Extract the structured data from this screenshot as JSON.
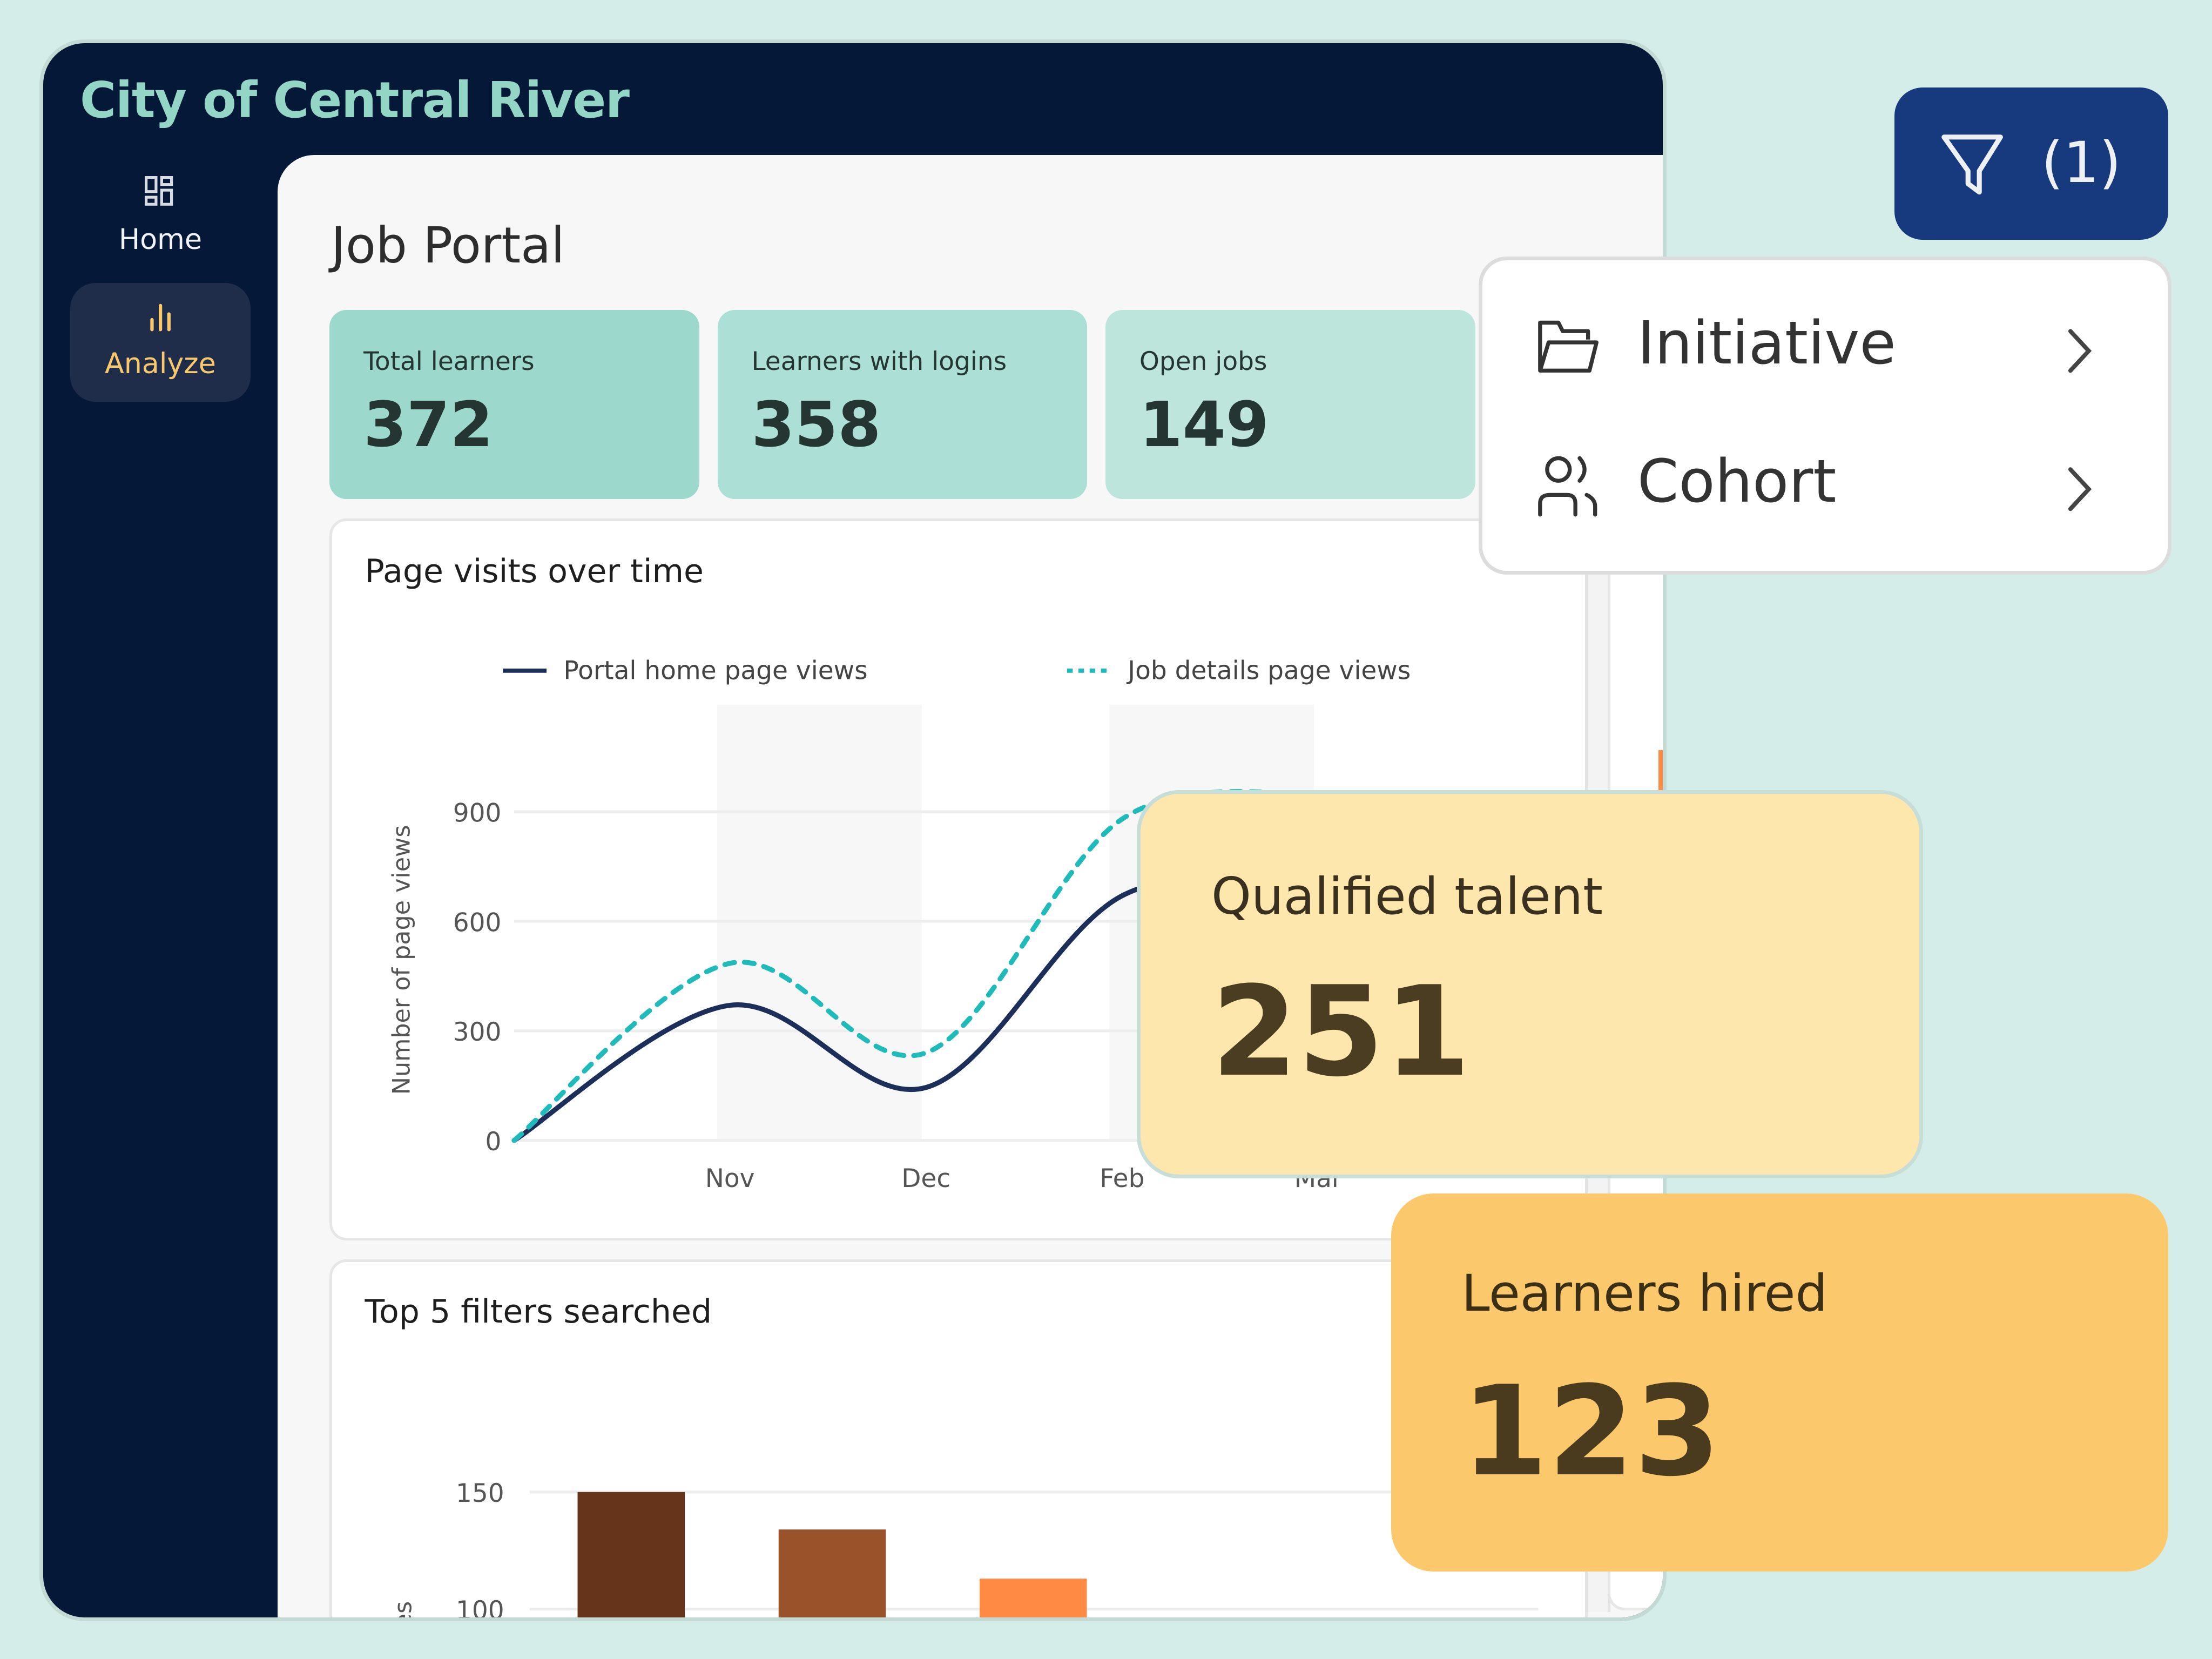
{
  "app": {
    "title": "City of Central River"
  },
  "sidebar": {
    "items": [
      {
        "label": "Home",
        "icon": "dashboard-grid-icon",
        "active": false
      },
      {
        "label": "Analyze",
        "icon": "bar-chart-icon",
        "active": true
      }
    ]
  },
  "page": {
    "title": "Job Portal"
  },
  "kpis": [
    {
      "label": "Total learners",
      "value": "372",
      "color": "#9dd8cc"
    },
    {
      "label": "Learners with logins",
      "value": "358",
      "color": "#acdfd5"
    },
    {
      "label": "Open jobs",
      "value": "149",
      "color": "#bde5dc"
    }
  ],
  "filter": {
    "icon": "funnel-icon",
    "count": "(1)",
    "color": "#173a7e"
  },
  "filter_menu": {
    "items": [
      {
        "label": "Initiative",
        "icon": "folder-open-icon"
      },
      {
        "label": "Cohort",
        "icon": "users-icon"
      }
    ]
  },
  "overlays": {
    "qualified_talent": {
      "label": "Qualified talent",
      "value": "251",
      "color": "#fde7ad"
    },
    "learners_hired": {
      "label": "Learners hired",
      "value": "123",
      "color": "#fbc96c"
    }
  },
  "chart_data": [
    {
      "type": "line",
      "title": "Page visits over time",
      "ylabel": "Number of page views",
      "xlabel": "",
      "ylim": [
        0,
        900
      ],
      "yticks": [
        "0",
        "300",
        "600",
        "900"
      ],
      "categories": [
        "",
        "Nov",
        "Dec",
        "Feb",
        "Mar"
      ],
      "grid": true,
      "legend": "top",
      "series": [
        {
          "name": "Portal home page views",
          "values": [
            0,
            370,
            145,
            670,
            700
          ],
          "color": "#1b2f5a",
          "style": "solid"
        },
        {
          "name": "Job details page views",
          "values": [
            0,
            485,
            240,
            880,
            950
          ],
          "color": "#1fbbbb",
          "style": "dotted"
        }
      ]
    },
    {
      "type": "bar",
      "title": "Top 5 filters searched",
      "ylabel": "es",
      "yticks": [
        "100",
        "150"
      ],
      "grid": true,
      "values": [
        150,
        134,
        113
      ],
      "colors": [
        "#66341b",
        "#9a522a",
        "#ff8a44"
      ]
    }
  ]
}
